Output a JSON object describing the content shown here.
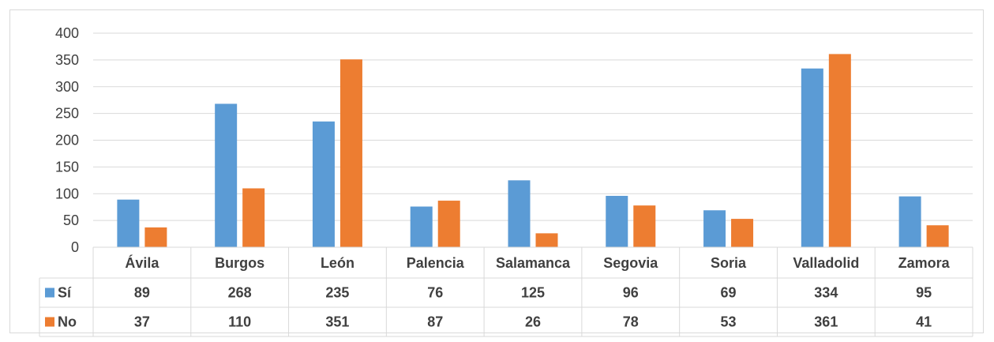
{
  "chart_data": {
    "type": "bar",
    "categories": [
      "Ávila",
      "Burgos",
      "León",
      "Palencia",
      "Salamanca",
      "Segovia",
      "Soria",
      "Valladolid",
      "Zamora"
    ],
    "series": [
      {
        "name": "Sí",
        "color": "#5b9bd5",
        "values": [
          89,
          268,
          235,
          76,
          125,
          96,
          69,
          334,
          95
        ]
      },
      {
        "name": "No",
        "color": "#ed7d31",
        "values": [
          37,
          110,
          351,
          87,
          26,
          78,
          53,
          361,
          41
        ]
      }
    ],
    "yticks": [
      "0",
      "50",
      "100",
      "150",
      "200",
      "250",
      "300",
      "350",
      "400"
    ],
    "ylim": [
      0,
      400
    ],
    "grid": true,
    "data_table": true
  }
}
